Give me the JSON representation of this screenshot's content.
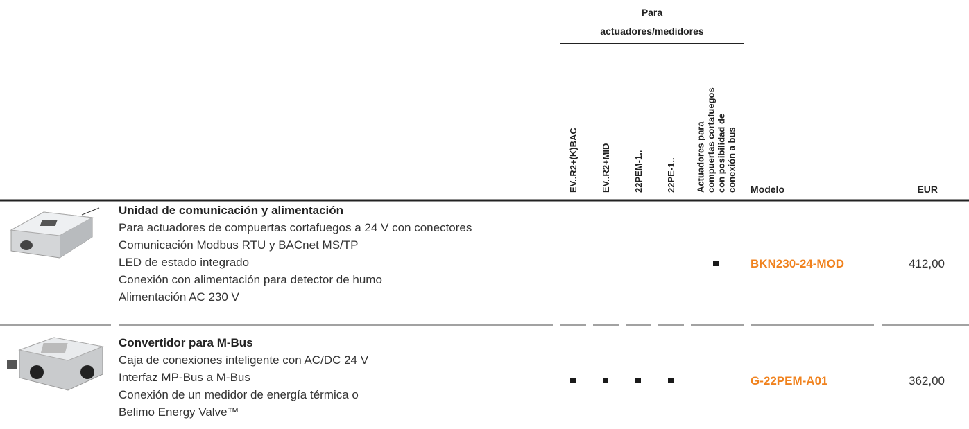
{
  "table": {
    "group_title": [
      "Para",
      "actuadores/medidores"
    ],
    "columns": [
      {
        "lines": [
          "EV..R2+(K)BAC"
        ]
      },
      {
        "lines": [
          "EV..R2+MID"
        ]
      },
      {
        "lines": [
          "22PEM-1.."
        ]
      },
      {
        "lines": [
          "22PE-1.."
        ]
      },
      {
        "lines": [
          "Actuadores para",
          "compuertas cortafuegos",
          "con posibilidad de",
          "conexión a bus"
        ]
      }
    ],
    "model_header": "Modelo",
    "price_header": "EUR",
    "mark_color": "#1a1a1a",
    "model_color": "#f0821e",
    "rows": [
      {
        "title": "Unidad de comunicación y alimentación",
        "lines": [
          "Para actuadores de compuertas cortafuegos a 24 V con conectores",
          "Comunicación Modbus RTU y BACnet MS/TP",
          "LED de estado integrado",
          "Conexión con alimentación para detector de humo",
          "Alimentación AC 230 V"
        ],
        "applies": [
          false,
          false,
          false,
          false,
          true
        ],
        "model": "BKN230-24-MOD",
        "price": "412,00"
      },
      {
        "title": "Convertidor para M-Bus",
        "lines": [
          "Caja de conexiones inteligente con AC/DC 24 V",
          "Interfaz MP-Bus a M-Bus",
          "Conexión de un medidor de energía térmica o",
          "Belimo Energy Valve™"
        ],
        "applies": [
          true,
          true,
          true,
          true,
          false
        ],
        "model": "G-22PEM-A01",
        "price": "362,00"
      }
    ]
  }
}
